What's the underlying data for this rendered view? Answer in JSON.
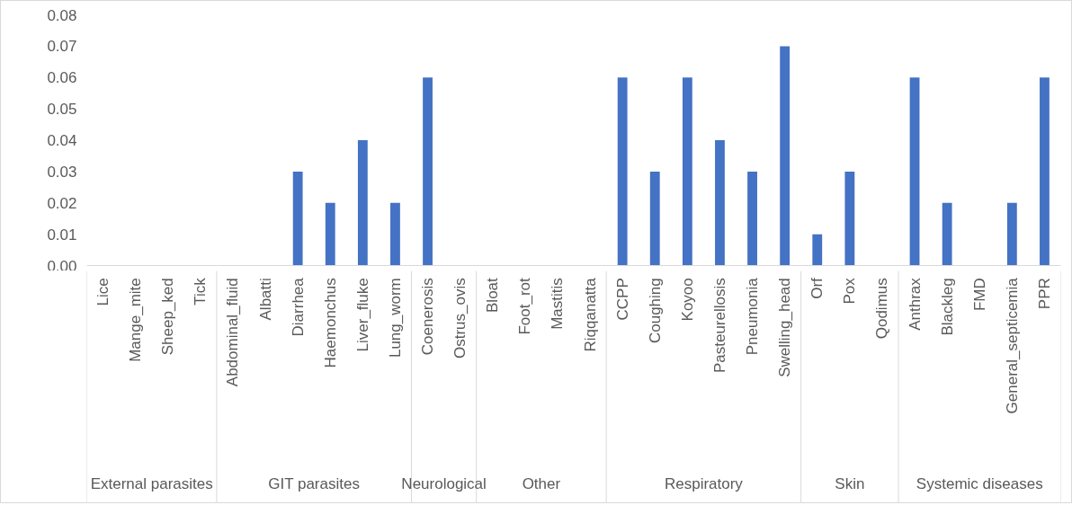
{
  "chart_data": {
    "type": "bar",
    "categories": [
      "Lice",
      "Mange_mite",
      "Sheep_ked",
      "Tick",
      "Abdominal_fluid",
      "Albatti",
      "Diarrhea",
      "Haemonchus",
      "Liver_fluke",
      "Lung_worm",
      "Coenerosis",
      "Ostrus_ovis",
      "Bloat",
      "Foot_rot",
      "Mastitis",
      "Riqqanatta",
      "CCPP",
      "Coughing",
      "Koyoo",
      "Pasteurellosis",
      "Pneumonia",
      "Swelling_head",
      "Orf",
      "Pox",
      "Qodimus",
      "Anthrax",
      "Blackleg",
      "FMD",
      "General_septicemia",
      "PPR"
    ],
    "values": [
      0,
      0,
      0,
      0,
      0,
      0,
      0.03,
      0.02,
      0.04,
      0.02,
      0.06,
      0,
      0,
      0,
      0,
      0,
      0.06,
      0.03,
      0.06,
      0.04,
      0.03,
      0.07,
      0.01,
      0.03,
      0,
      0.06,
      0.02,
      0,
      0.02,
      0.06
    ],
    "color": "#4472c4",
    "ylim": [
      0,
      0.08
    ],
    "yticks": [
      {
        "value": 0,
        "label": "0.00"
      },
      {
        "value": 0.01,
        "label": "0.01"
      },
      {
        "value": 0.02,
        "label": "0.02"
      },
      {
        "value": 0.03,
        "label": "0.03"
      },
      {
        "value": 0.04,
        "label": "0.04"
      },
      {
        "value": 0.05,
        "label": "0.05"
      },
      {
        "value": 0.06,
        "label": "0.06"
      },
      {
        "value": 0.07,
        "label": "0.07"
      },
      {
        "value": 0.08,
        "label": "0.08"
      }
    ],
    "annotations": [
      "External parasites",
      "GIT parasites",
      "Neurological",
      "Other",
      "Respiratory",
      "Skin",
      "Systemic diseases"
    ],
    "grid": false
  }
}
